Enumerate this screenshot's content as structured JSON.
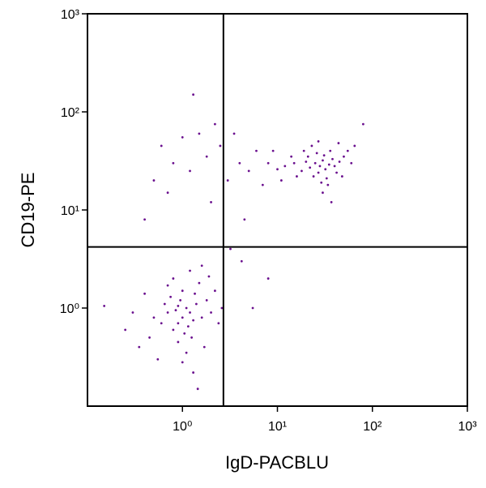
{
  "chart_data": {
    "type": "scatter",
    "x_label": "IgD-PACBLU",
    "y_label": "CD19-PE",
    "log_x": true,
    "log_y": true,
    "xlim": [
      0.1,
      1000
    ],
    "ylim": [
      0.1,
      1000
    ],
    "xticks": [
      {
        "value": 1,
        "label": "10⁰"
      },
      {
        "value": 10,
        "label": "10¹"
      },
      {
        "value": 100,
        "label": "10²"
      },
      {
        "value": 1000,
        "label": "10³"
      }
    ],
    "yticks": [
      {
        "value": 1,
        "label": "10⁰"
      },
      {
        "value": 10,
        "label": "10¹"
      },
      {
        "value": 100,
        "label": "10²"
      },
      {
        "value": 1000,
        "label": "10³"
      }
    ],
    "gates": {
      "x": 2.7,
      "y": 4.2
    },
    "color": "#6a0f8e",
    "x": [
      1.0,
      0.9,
      1.2,
      1.1,
      0.8,
      1.3,
      0.95,
      1.05,
      0.7,
      1.4,
      1.15,
      0.85,
      1.6,
      0.75,
      1.25,
      0.6,
      1.8,
      1.0,
      0.9,
      1.35,
      0.65,
      2.0,
      1.1,
      0.5,
      1.5,
      0.8,
      2.2,
      1.2,
      0.45,
      1.7,
      0.3,
      0.25,
      0.15,
      0.55,
      1.3,
      1.45,
      2.4,
      0.7,
      1.9,
      0.4,
      1.0,
      2.6,
      0.35,
      1.6,
      0.9,
      28,
      25,
      32,
      30,
      22,
      35,
      27,
      20,
      38,
      24,
      31,
      18,
      40,
      26,
      33,
      15,
      45,
      29,
      21,
      36,
      16,
      50,
      12,
      42,
      23,
      10,
      55,
      34,
      19,
      60,
      14,
      48,
      27,
      8,
      65,
      30,
      11,
      44,
      80,
      37,
      0.5,
      0.6,
      0.8,
      1.0,
      0.7,
      1.2,
      1.5,
      0.4,
      1.8,
      2.0,
      2.5,
      3,
      3.5,
      4,
      2.2,
      5,
      6,
      7,
      4.5,
      3.2,
      4.2,
      1.3,
      5.5,
      8,
      9
    ],
    "y": [
      0.8,
      0.7,
      0.9,
      1.0,
      0.6,
      0.75,
      1.2,
      0.55,
      0.9,
      1.1,
      0.65,
      0.95,
      0.8,
      1.3,
      0.5,
      0.7,
      1.2,
      1.5,
      0.45,
      1.4,
      1.1,
      0.9,
      0.35,
      0.8,
      1.8,
      2.0,
      1.5,
      2.4,
      0.5,
      0.4,
      0.9,
      0.6,
      1.05,
      0.3,
      0.22,
      0.15,
      0.7,
      1.7,
      2.1,
      1.4,
      0.28,
      1.0,
      0.4,
      2.7,
      1.05,
      28,
      30,
      26,
      32,
      27,
      29,
      24,
      31,
      33,
      22,
      36,
      25,
      28,
      38,
      21,
      30,
      31,
      19,
      35,
      40,
      22,
      35,
      28,
      24,
      45,
      26,
      40,
      18,
      40,
      30,
      35,
      22,
      50,
      30,
      45,
      15,
      20,
      48,
      75,
      12,
      20,
      45,
      30,
      55,
      15,
      25,
      60,
      8,
      35,
      12,
      45,
      20,
      60,
      30,
      75,
      25,
      40,
      18,
      8,
      4,
      3,
      150,
      1.0,
      2,
      40
    ]
  }
}
